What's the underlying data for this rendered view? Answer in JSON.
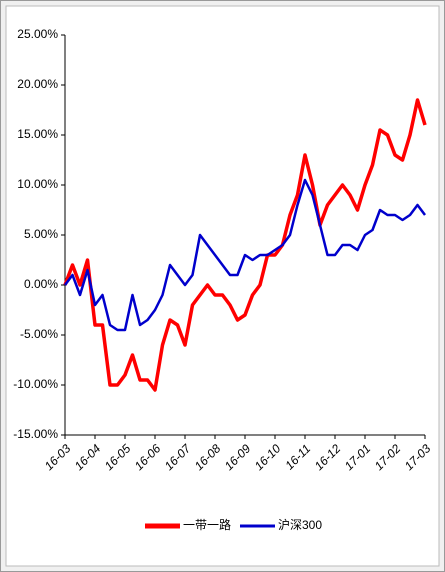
{
  "chart_data": {
    "type": "line",
    "x": [
      0,
      0.25,
      0.5,
      0.75,
      1,
      1.25,
      1.5,
      1.75,
      2,
      2.25,
      2.5,
      2.75,
      3,
      3.25,
      3.5,
      3.75,
      4,
      4.25,
      4.5,
      4.75,
      5,
      5.25,
      5.5,
      5.75,
      6,
      6.25,
      6.5,
      6.75,
      7,
      7.25,
      7.5,
      7.75,
      8,
      8.25,
      8.5,
      8.75,
      9,
      9.25,
      9.5,
      9.75,
      10,
      10.25,
      10.5,
      10.75,
      11,
      11.25,
      11.5,
      11.75,
      12
    ],
    "series": [
      {
        "name": "一带一路",
        "color": "#ff0000",
        "values": [
          0,
          2,
          0,
          2.5,
          -4,
          -4,
          -10,
          -10,
          -9,
          -7,
          -9.5,
          -9.5,
          -10.5,
          -6,
          -3.5,
          -4,
          -6,
          -2,
          -1,
          0,
          -1,
          -1,
          -2,
          -3.5,
          -3,
          -1,
          0,
          3,
          3,
          4,
          7,
          9,
          13,
          10,
          6,
          8,
          9,
          10,
          9,
          7.5,
          10,
          12,
          15.5,
          15,
          13,
          12.5,
          15,
          18.5,
          16
        ]
      },
      {
        "name": "沪深300",
        "color": "#0000cc",
        "values": [
          0,
          1,
          -1,
          1.5,
          -2,
          -1,
          -4,
          -4.5,
          -4.5,
          -1,
          -4,
          -3.5,
          -2.5,
          -1,
          2,
          1,
          0,
          1,
          5,
          4,
          3,
          2,
          1,
          1,
          3,
          2.5,
          3,
          3,
          3.5,
          4,
          5,
          8,
          10.5,
          9,
          6,
          3,
          3,
          4,
          4,
          3.5,
          5,
          5.5,
          7.5,
          7,
          7,
          6.5,
          7,
          8,
          7
        ]
      }
    ],
    "xlim": [
      0,
      12
    ],
    "xticks": [
      {
        "value": 0,
        "label": "16-03"
      },
      {
        "value": 1,
        "label": "16-04"
      },
      {
        "value": 2,
        "label": "16-05"
      },
      {
        "value": 3,
        "label": "16-06"
      },
      {
        "value": 4,
        "label": "16-07"
      },
      {
        "value": 5,
        "label": "16-08"
      },
      {
        "value": 6,
        "label": "16-09"
      },
      {
        "value": 7,
        "label": "16-10"
      },
      {
        "value": 8,
        "label": "16-11"
      },
      {
        "value": 9,
        "label": "16-12"
      },
      {
        "value": 10,
        "label": "17-01"
      },
      {
        "value": 11,
        "label": "17-02"
      },
      {
        "value": 12,
        "label": "17-03"
      }
    ],
    "ylim": [
      -15,
      25
    ],
    "yticks": [
      {
        "value": -15,
        "label": "-15.00%"
      },
      {
        "value": -10,
        "label": "-10.00%"
      },
      {
        "value": -5,
        "label": "-5.00%"
      },
      {
        "value": 0,
        "label": "0.00%"
      },
      {
        "value": 5,
        "label": "5.00%"
      },
      {
        "value": 10,
        "label": "10.00%"
      },
      {
        "value": 15,
        "label": "15.00%"
      },
      {
        "value": 20,
        "label": "20.00%"
      },
      {
        "value": 25,
        "label": "25.00%"
      }
    ],
    "legend": "bottom"
  }
}
